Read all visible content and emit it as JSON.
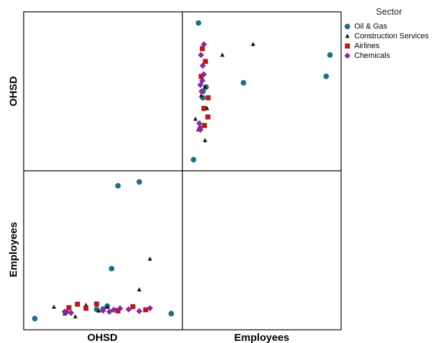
{
  "legend": {
    "title": "Sector",
    "position": "top-right"
  },
  "chart_data": {
    "type": "scatter",
    "subtype": "scatterplot-matrix",
    "variables": [
      "OHSD",
      "Employees"
    ],
    "grid": false,
    "series": [
      {
        "name": "Oil & Gas",
        "marker": "circle",
        "color": "#1f6e86",
        "points": [
          {
            "OHSD": 10.0,
            "Employees": 9.6
          },
          {
            "OHSD": 8.5,
            "Employees": 78.0
          },
          {
            "OHSD": 7.5,
            "Employees": 76.0
          },
          {
            "OHSD": 7.2,
            "Employees": 33.0
          },
          {
            "OHSD": 7.0,
            "Employees": 13.5
          },
          {
            "OHSD": 6.8,
            "Employees": 12.0
          },
          {
            "OHSD": 6.5,
            "Employees": 11.8
          },
          {
            "OHSD": 3.6,
            "Employees": 7.0
          }
        ]
      },
      {
        "name": "Construction Services",
        "marker": "triangle",
        "color": "#1a1a1a",
        "points": [
          {
            "OHSD": 9.0,
            "Employees": 38.0
          },
          {
            "OHSD": 8.5,
            "Employees": 22.0
          },
          {
            "OHSD": 7.6,
            "Employees": 12.4
          },
          {
            "OHSD": 7.4,
            "Employees": 11.6
          },
          {
            "OHSD": 7.0,
            "Employees": 13.0
          },
          {
            "OHSD": 6.6,
            "Employees": 11.0
          },
          {
            "OHSD": 6.0,
            "Employees": 14.0
          },
          {
            "OHSD": 5.5,
            "Employees": 8.0
          },
          {
            "OHSD": 5.0,
            "Employees": 9.5
          },
          {
            "OHSD": 4.5,
            "Employees": 13.0
          }
        ]
      },
      {
        "name": "Airlines",
        "marker": "square",
        "color": "#b31b1b",
        "points": [
          {
            "OHSD": 8.8,
            "Employees": 11.6
          },
          {
            "OHSD": 8.2,
            "Employees": 13.2
          },
          {
            "OHSD": 7.5,
            "Employees": 11.0
          },
          {
            "OHSD": 6.5,
            "Employees": 14.6
          },
          {
            "OHSD": 6.0,
            "Employees": 12.4
          },
          {
            "OHSD": 5.6,
            "Employees": 14.5
          },
          {
            "OHSD": 5.2,
            "Employees": 12.7
          }
        ]
      },
      {
        "name": "Chemicals",
        "marker": "diamond",
        "color": "#8b2aa0",
        "points": [
          {
            "OHSD": 9.0,
            "Employees": 12.4
          },
          {
            "OHSD": 8.5,
            "Employees": 10.9
          },
          {
            "OHSD": 8.0,
            "Employees": 11.8
          },
          {
            "OHSD": 7.6,
            "Employees": 12.3
          },
          {
            "OHSD": 7.3,
            "Employees": 11.6
          },
          {
            "OHSD": 7.1,
            "Employees": 10.6
          },
          {
            "OHSD": 6.8,
            "Employees": 11.2
          },
          {
            "OHSD": 5.3,
            "Employees": 10.0
          },
          {
            "OHSD": 5.1,
            "Employees": 10.5
          },
          {
            "OHSD": 5.0,
            "Employees": 10.6
          }
        ]
      }
    ]
  }
}
